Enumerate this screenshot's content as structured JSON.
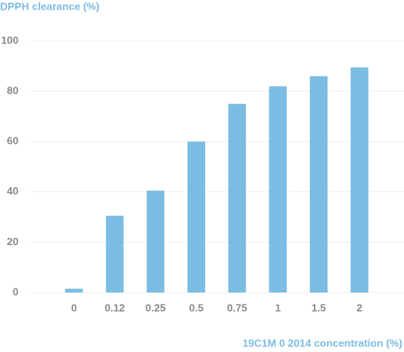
{
  "chart_data": {
    "type": "bar",
    "y_label": "DPPH clearance (%)",
    "x_label": "19C1M 0 2014 concentration (%)",
    "categories": [
      "0",
      "0.12",
      "0.25",
      "0.5",
      "0.75",
      "1",
      "1.5",
      "2"
    ],
    "values": [
      1.5,
      30.5,
      40.5,
      60,
      75,
      82,
      86,
      89.5
    ],
    "color": "#7bbce2",
    "ylim": [
      0,
      100
    ],
    "yticks": [
      0,
      20,
      40,
      60,
      80,
      100
    ],
    "grid": true
  }
}
